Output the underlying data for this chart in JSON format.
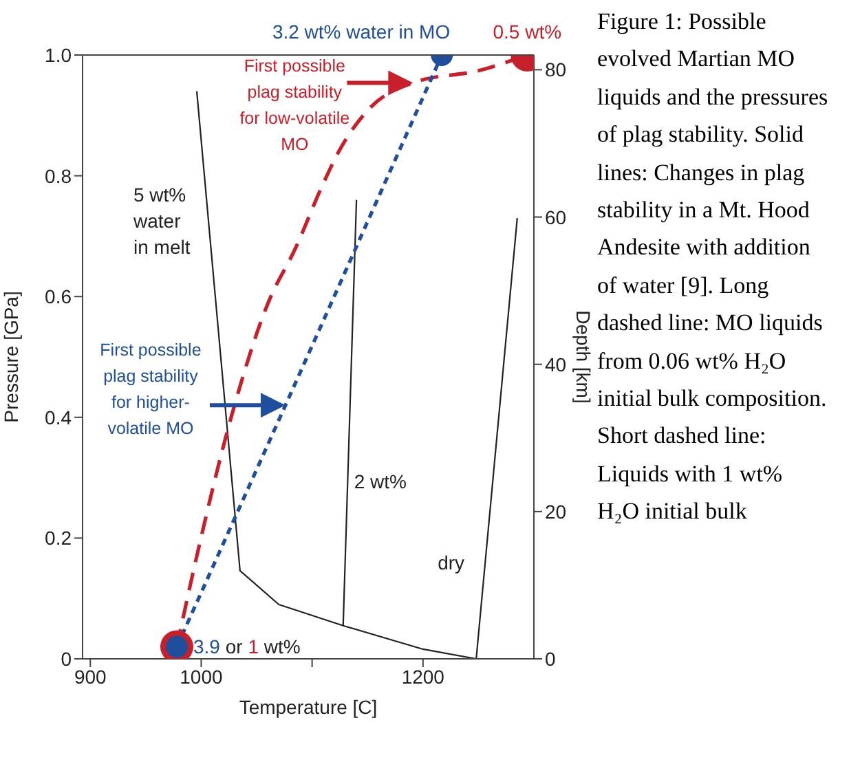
{
  "chart_data": {
    "type": "line",
    "xlabel": "Temperature [C]",
    "ylabel": "Pressure [GPa]",
    "y2label": "Depth [km]",
    "xlim": [
      893,
      1300
    ],
    "xticks": [
      900,
      1000,
      {
        "value": 1100,
        "label": null
      },
      1200
    ],
    "ylim": [
      0,
      1
    ],
    "yticks": [
      0,
      0.2,
      0.4,
      0.6,
      0.8,
      {
        "value": 1,
        "label": "1.0"
      }
    ],
    "y2lim": [
      0,
      82
    ],
    "y2ticks": [
      0,
      20,
      40,
      60,
      80
    ],
    "marker": "none",
    "series": [
      {
        "name": "5 wt% water in melt",
        "color": "#222222",
        "x": [
          996,
          1035,
          1070,
          1128,
          1200,
          1248
        ],
        "values": [
          0.94,
          0.146,
          0.09,
          0.055,
          0.016,
          0
        ]
      },
      {
        "name": "2 wt%",
        "color": "#222222",
        "x": [
          1140,
          1128
        ],
        "values": [
          0.76,
          0.055
        ]
      },
      {
        "name": "dry",
        "color": "#222222",
        "x": [
          1285,
          1248
        ],
        "values": [
          0.73,
          0
        ]
      },
      {
        "color": "#c8202a",
        "line_style": "dashed",
        "x": [
          978,
          996,
          1027,
          1060,
          1085,
          1110,
          1124,
          1151,
          1191,
          1252,
          1294
        ],
        "values": [
          0.02,
          0.17,
          0.4,
          0.588,
          0.68,
          0.787,
          0.84,
          0.91,
          0.954,
          0.975,
          1
        ]
      },
      {
        "color": "#1f4e9c",
        "line_style": "dotted",
        "x": [
          978,
          1076,
          1217
        ],
        "values": [
          0.02,
          0.42,
          1
        ]
      },
      {
        "type": "scatter",
        "marker": "circle",
        "color": "#c8202a",
        "x": [
          1294,
          978
        ],
        "values": [
          1,
          0.02
        ]
      },
      {
        "type": "scatter",
        "marker": "circle",
        "color": "#1f4e9c",
        "x": [
          1217,
          978
        ],
        "values": [
          1,
          0.02
        ]
      }
    ],
    "annotations": [
      {
        "text": "3.2 wt% water in MO",
        "x": 1217,
        "y": 1
      },
      {
        "text": "0.5 wt%",
        "x": 1294,
        "y": 1
      },
      {
        "text": "3.9 or 1 wt%",
        "x": 978,
        "y": 0.02
      },
      "First possible plag stability for low-volatile MO",
      "First possible plag stability for higher-volatile MO",
      "Figure 1: Possible evolved Martian MO liquids and the pressures of plag stability. Solid lines: Changes in plag stability in a Mt. Hood Andesite with addition of water [9]. Long dashed line: MO liquids from 0.06 wt% H₂O initial bulk composition. Short dashed line: Liquids with 1 wt% H₂O initial bulk"
    ]
  }
}
